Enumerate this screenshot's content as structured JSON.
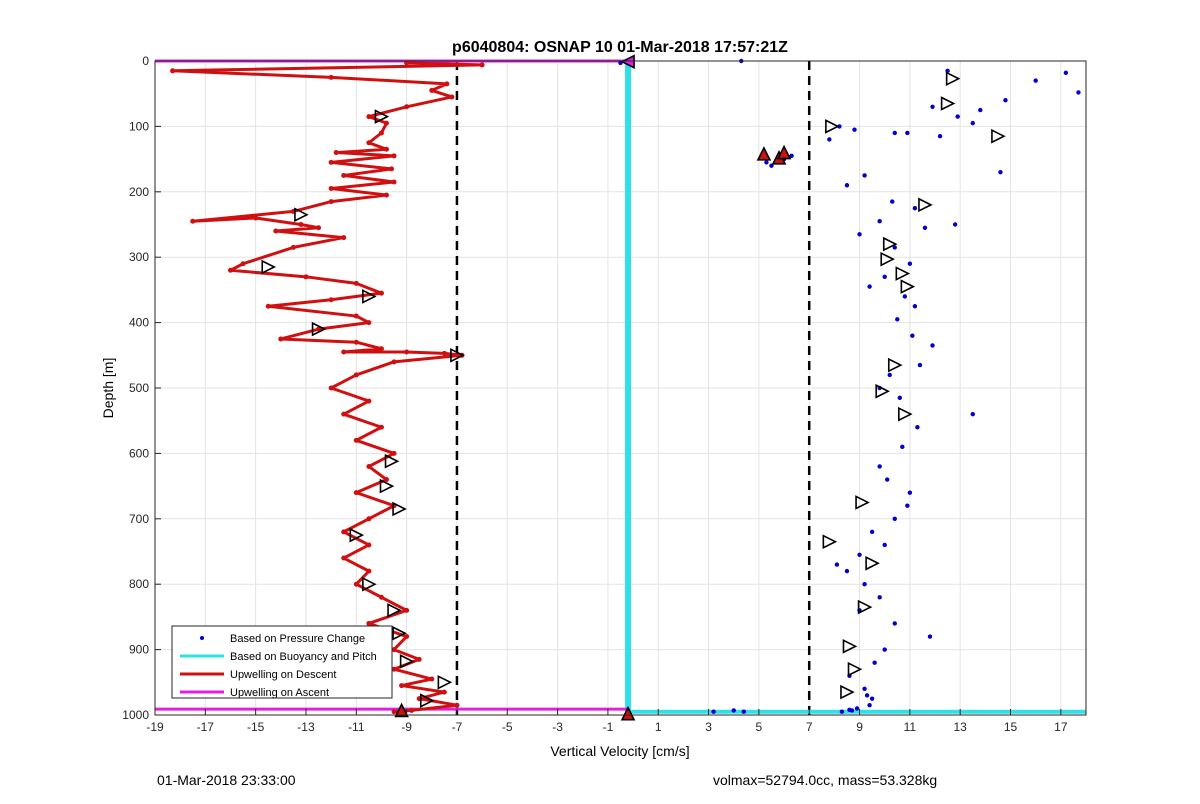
{
  "footer": {
    "timestamp": "01-Mar-2018 23:33:00",
    "summary": "volmax=52794.0cc, mass=53.328kg"
  },
  "chart_data": {
    "type": "scatter",
    "title": "p6040804: OSNAP 10 01-Mar-2018 17:57:21Z",
    "xlabel": "Vertical Velocity [cm/s]",
    "ylabel": "Depth [m]",
    "xlim": [
      -19,
      18
    ],
    "ylim": [
      0,
      1000
    ],
    "y_reversed": true,
    "x_ticks": [
      -19,
      -17,
      -15,
      -13,
      -11,
      -9,
      -7,
      -5,
      -3,
      -1,
      1,
      3,
      5,
      7,
      9,
      11,
      13,
      15,
      17
    ],
    "y_ticks": [
      0,
      100,
      200,
      300,
      400,
      500,
      600,
      700,
      800,
      900,
      1000
    ],
    "grid": true,
    "legend_position": "bottom-left",
    "colors": {
      "pressure": "#0000d0",
      "buoyancy": "#30e0e8",
      "descent": "#d01010",
      "ascent": "#e020e0"
    },
    "reference_lines": {
      "x": [
        -7,
        7
      ],
      "style": "dashed",
      "color": "#000000"
    },
    "legend": [
      {
        "name": "Based on Pressure Change",
        "key": "pressure",
        "style": "dot"
      },
      {
        "name": "Based on Buoyancy and Pitch",
        "key": "buoyancy",
        "style": "line"
      },
      {
        "name": "Upwelling on Descent",
        "key": "descent",
        "style": "line"
      },
      {
        "name": "Upwelling on Ascent",
        "key": "ascent",
        "style": "line"
      }
    ],
    "series": [
      {
        "name": "Based on Pressure Change",
        "key": "pressure",
        "x": [
          12.5,
          16.0,
          17.2,
          17.7,
          14.8,
          13.8,
          12.9,
          11.9,
          10.4,
          8.2,
          7.8,
          8.8,
          10.9,
          12.2,
          13.5,
          14.6,
          9.2,
          8.5,
          10.3,
          11.2,
          9.8,
          11.6,
          12.8,
          9.0,
          10.4,
          11.0,
          10.0,
          9.4,
          10.8,
          11.2,
          10.5,
          11.1,
          11.9,
          11.4,
          10.2,
          9.8,
          10.6,
          13.5,
          11.3,
          10.7,
          9.8,
          10.1,
          11.0,
          10.9,
          10.4,
          9.5,
          10.0,
          9.0,
          8.1,
          8.5,
          9.2,
          9.8,
          9.0,
          10.4,
          11.8,
          10.0,
          9.6,
          8.6,
          9.2,
          9.5,
          8.9,
          8.7,
          9.4,
          9.3,
          8.3,
          8.6,
          4.3,
          -0.5,
          5.3,
          6.0,
          5.5,
          6.3,
          4.4,
          4.0,
          3.2
        ],
        "y": [
          15,
          30,
          18,
          48,
          60,
          75,
          85,
          70,
          110,
          100,
          120,
          105,
          110,
          115,
          95,
          170,
          175,
          190,
          215,
          225,
          245,
          255,
          250,
          265,
          285,
          310,
          330,
          345,
          360,
          375,
          395,
          420,
          435,
          465,
          480,
          500,
          515,
          540,
          560,
          590,
          620,
          640,
          660,
          680,
          700,
          720,
          740,
          755,
          770,
          780,
          800,
          820,
          840,
          860,
          880,
          900,
          920,
          940,
          960,
          975,
          990,
          993,
          985,
          970,
          995,
          992,
          0,
          3,
          155,
          150,
          160,
          145,
          995,
          993,
          995
        ]
      },
      {
        "name": "Upwelling on Descent",
        "key": "descent",
        "x": [
          -9.0,
          -6.0,
          -18.3,
          -12.0,
          -7.4,
          -8.0,
          -7.2,
          -9.0,
          -10.5,
          -9.8,
          -10.0,
          -10.5,
          -9.8,
          -11.8,
          -9.5,
          -12.0,
          -9.6,
          -11.5,
          -9.5,
          -12.0,
          -9.8,
          -12.0,
          -13.5,
          -17.5,
          -15.0,
          -13.2,
          -12.5,
          -14.2,
          -11.5,
          -13.5,
          -15.5,
          -16.0,
          -13.0,
          -11.0,
          -10.0,
          -12.0,
          -14.5,
          -11.0,
          -10.5,
          -12.5,
          -14.0,
          -11.0,
          -10.0,
          -11.5,
          -9.0,
          -7.5,
          -6.8,
          -9.5,
          -11.0,
          -12.0,
          -10.5,
          -11.5,
          -10.0,
          -11.0,
          -9.5,
          -10.5,
          -9.8,
          -11.0,
          -9.5,
          -10.5,
          -11.5,
          -10.5,
          -11.5,
          -10.5,
          -11.0,
          -10.0,
          -9.0,
          -10.5,
          -9.0,
          -9.5,
          -8.5,
          -9.5,
          -8.0,
          -9.2,
          -7.5,
          -8.5,
          -7.0,
          -8.8,
          -9.5
        ],
        "y": [
          3,
          6,
          15,
          25,
          35,
          45,
          55,
          70,
          85,
          95,
          110,
          125,
          135,
          140,
          145,
          155,
          165,
          175,
          185,
          195,
          205,
          215,
          230,
          245,
          240,
          250,
          255,
          260,
          270,
          285,
          310,
          320,
          330,
          340,
          355,
          365,
          375,
          390,
          400,
          410,
          425,
          430,
          440,
          445,
          445,
          447,
          450,
          460,
          480,
          500,
          520,
          540,
          560,
          580,
          600,
          620,
          640,
          660,
          680,
          700,
          720,
          740,
          760,
          780,
          800,
          820,
          840,
          860,
          880,
          900,
          915,
          930,
          945,
          955,
          965,
          975,
          985,
          993,
          995
        ]
      },
      {
        "name": "Based on Buoyancy and Pitch",
        "key": "buoyancy",
        "x": [
          -0.2,
          -0.2,
          -0.2,
          18.0
        ],
        "y": [
          0,
          995,
          995,
          995
        ]
      },
      {
        "name": "Upwelling on Ascent",
        "key": "ascent",
        "x": [
          -19.0,
          -0.2,
          -19.0,
          -0.2
        ],
        "y": [
          0,
          0,
          991,
          991
        ]
      }
    ],
    "markers": {
      "right_triangles": [
        [
          12.7,
          27
        ],
        [
          12.5,
          65
        ],
        [
          14.5,
          115
        ],
        [
          7.9,
          100
        ],
        [
          11.6,
          220
        ],
        [
          10.2,
          280
        ],
        [
          10.1,
          303
        ],
        [
          10.7,
          325
        ],
        [
          10.9,
          345
        ],
        [
          10.4,
          465
        ],
        [
          9.9,
          505
        ],
        [
          10.8,
          540
        ],
        [
          9.1,
          675
        ],
        [
          7.8,
          735
        ],
        [
          9.5,
          768
        ],
        [
          9.2,
          835
        ],
        [
          8.6,
          895
        ],
        [
          8.8,
          930
        ],
        [
          8.5,
          965
        ],
        [
          -10.0,
          85
        ],
        [
          -13.2,
          235
        ],
        [
          -14.5,
          315
        ],
        [
          -10.5,
          360
        ],
        [
          -12.5,
          410
        ],
        [
          -7.0,
          450
        ],
        [
          -9.6,
          612
        ],
        [
          -9.8,
          650
        ],
        [
          -9.3,
          685
        ],
        [
          -11.0,
          725
        ],
        [
          -10.5,
          800
        ],
        [
          -9.5,
          840
        ],
        [
          -9.3,
          875
        ],
        [
          -9.0,
          918
        ],
        [
          -7.5,
          950
        ],
        [
          -8.2,
          978
        ]
      ],
      "up_triangles_red": [
        [
          5.2,
          142
        ],
        [
          5.8,
          148
        ],
        [
          6.0,
          140
        ]
      ],
      "up_triangles_bottom": [
        [
          -0.2,
          998
        ],
        [
          -9.2,
          993
        ]
      ],
      "left_triangle_top": [
        [
          -0.2,
          1
        ]
      ]
    }
  }
}
